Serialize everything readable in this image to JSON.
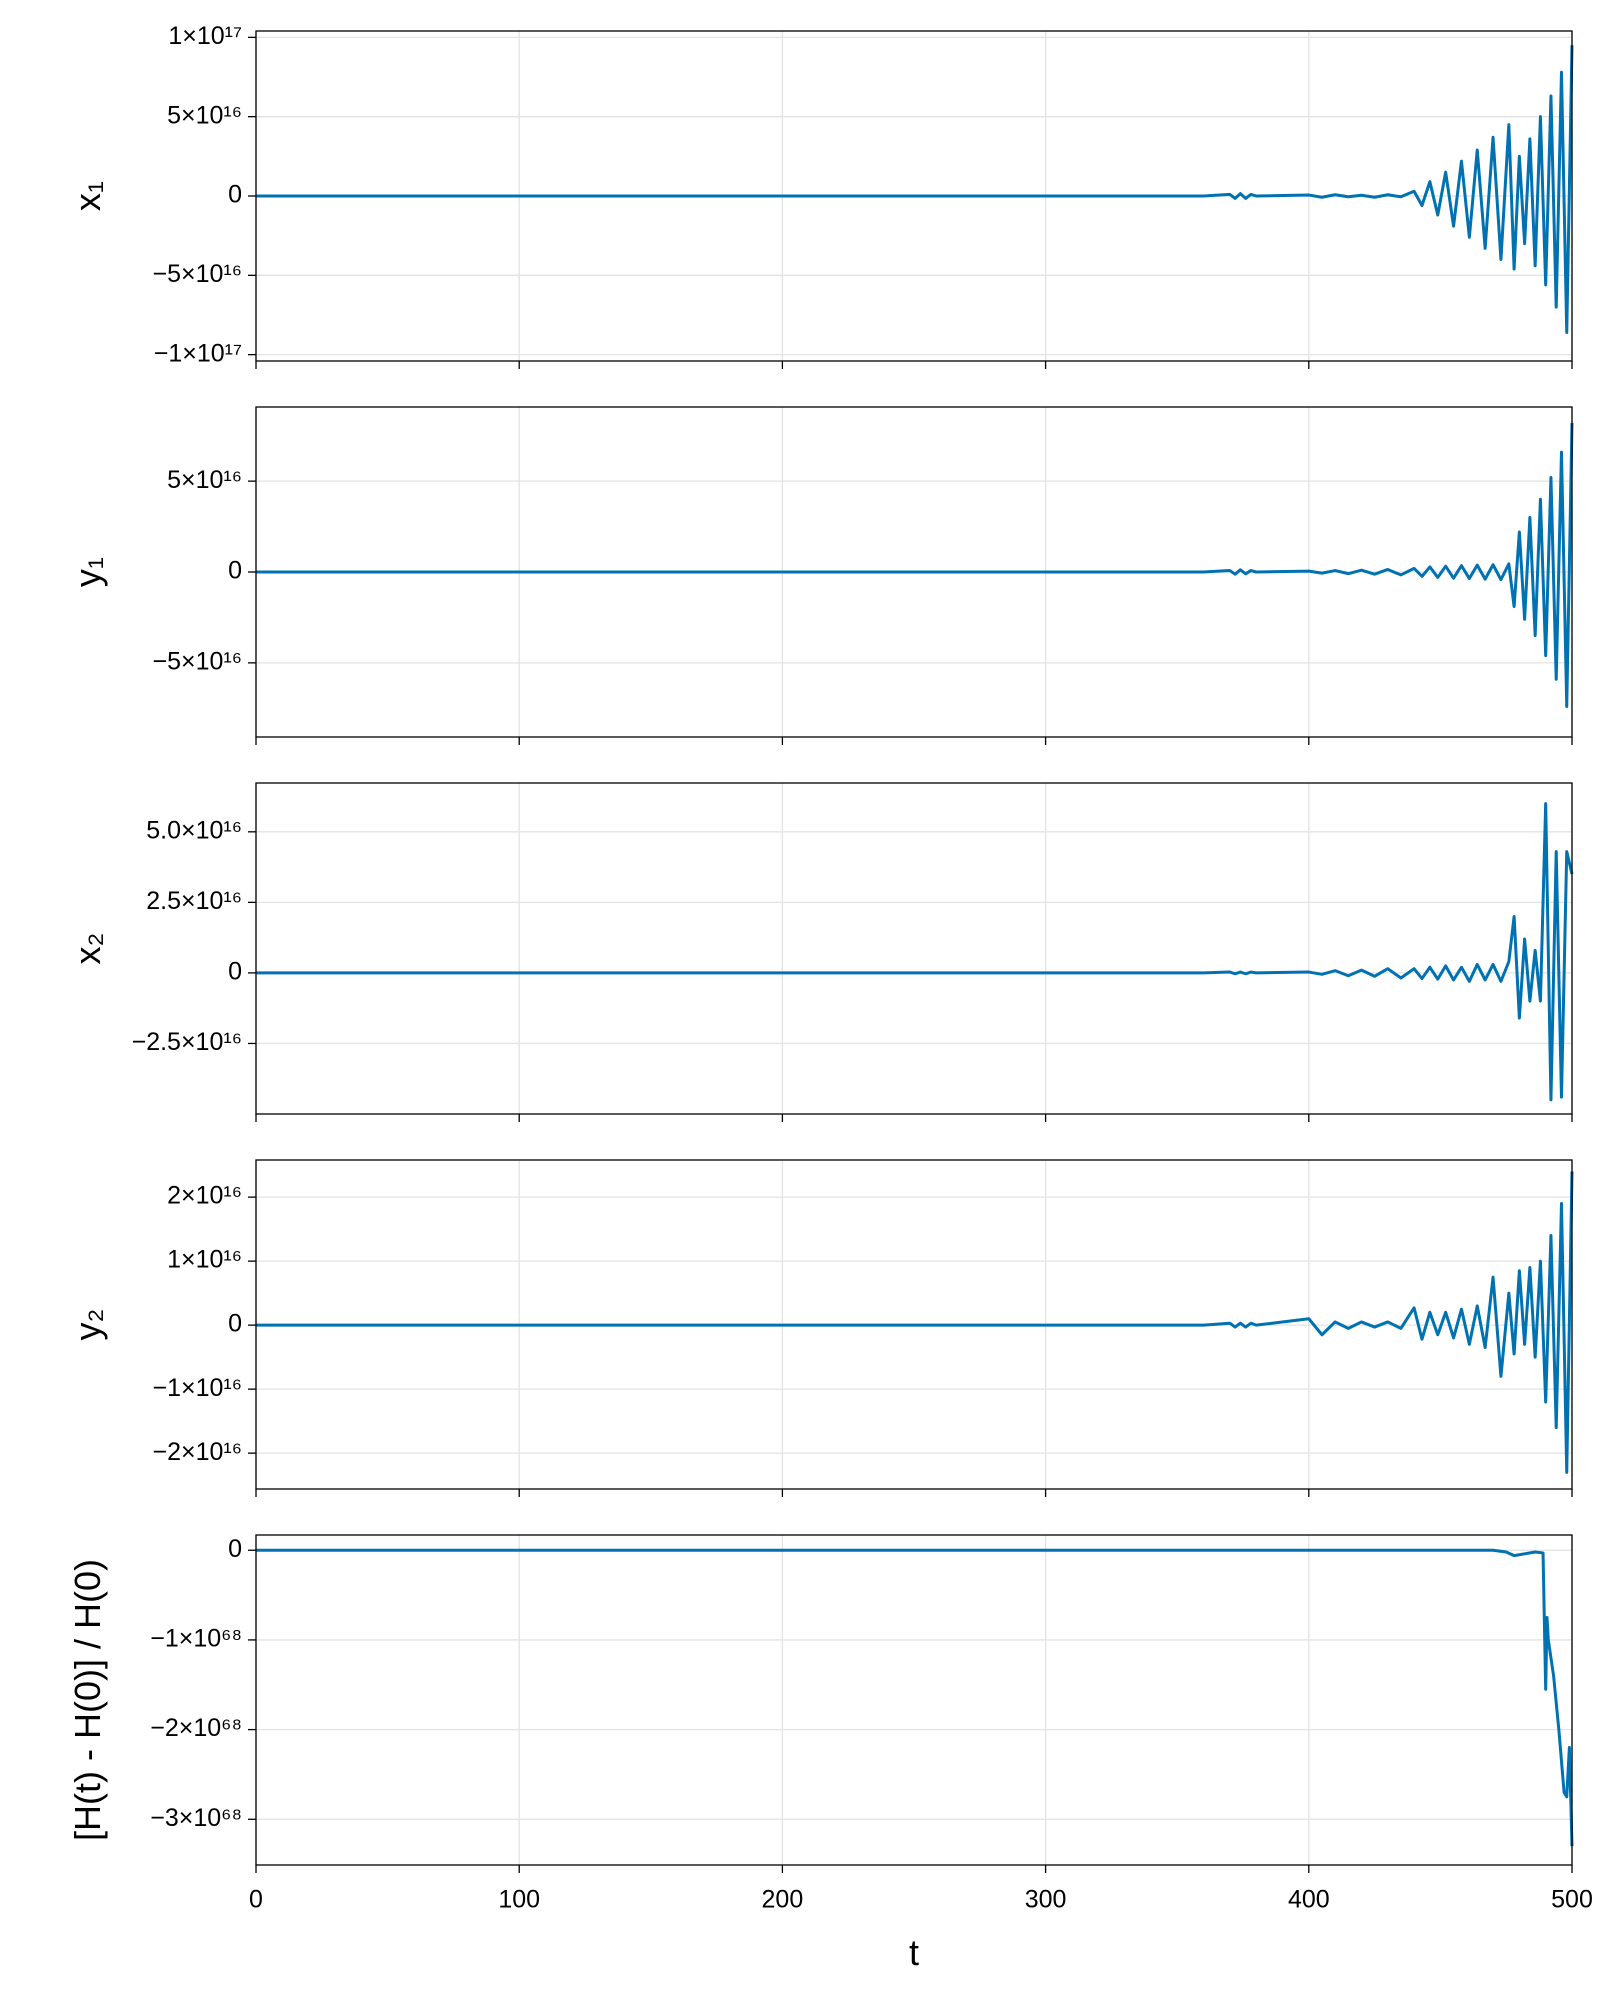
{
  "chart_data": [
    {
      "type": "line",
      "ylabel": "x₁",
      "xlim": [
        0,
        500
      ],
      "xticks": [
        0,
        100,
        200,
        300,
        400,
        500
      ],
      "grid": true,
      "ylim": [
        -1.04e+17,
        1.04e+17
      ],
      "yticks": [
        {
          "value": -1e+17,
          "label": "−1×10¹⁷"
        },
        {
          "value": -5e+16,
          "label": "−5×10¹⁶"
        },
        0,
        {
          "value": 5e+16,
          "label": "5×10¹⁶"
        },
        {
          "value": 1e+17,
          "label": "1×10¹⁷"
        }
      ],
      "x": [
        0,
        360,
        370,
        372,
        374,
        376,
        378,
        380,
        400,
        405,
        410,
        415,
        420,
        425,
        430,
        435,
        440,
        443,
        446,
        449,
        452,
        455,
        458,
        461,
        464,
        467,
        470,
        473,
        476,
        478,
        480,
        482,
        484,
        486,
        488,
        490,
        492,
        494,
        496,
        498,
        500
      ],
      "series": [
        {
          "color": "#0072b2",
          "values": [
            0,
            0,
            1000000000000000.0,
            -1500000000000000.0,
            1500000000000000.0,
            -1500000000000000.0,
            1000000000000000.0,
            0,
            600000000000000.0,
            -800000000000000.0,
            800000000000000.0,
            -500000000000000.0,
            500000000000000.0,
            -800000000000000.0,
            800000000000000.0,
            -500000000000000.0,
            3000000000000000.0,
            -6000000000000000.0,
            9000000000000000.0,
            -1.2e+16,
            1.5e+16,
            -1.9e+16,
            2.2e+16,
            -2.6e+16,
            2.9e+16,
            -3.3e+16,
            3.7e+16,
            -4e+16,
            4.5e+16,
            -4.6e+16,
            2.5e+16,
            -3e+16,
            3.6e+16,
            -4.4e+16,
            5e+16,
            -5.6e+16,
            6.3e+16,
            -7e+16,
            7.8e+16,
            -8.6e+16,
            9.5e+16
          ]
        }
      ]
    },
    {
      "type": "line",
      "ylabel": "y₁",
      "xlim": [
        0,
        500
      ],
      "xticks": [
        0,
        100,
        200,
        300,
        400,
        500
      ],
      "grid": true,
      "ylim": [
        -9.08e+16,
        9.08e+16
      ],
      "yticks": [
        {
          "value": -5e+16,
          "label": "−5×10¹⁶"
        },
        0,
        {
          "value": 5e+16,
          "label": "5×10¹⁶"
        }
      ],
      "x": [
        0,
        360,
        370,
        372,
        374,
        376,
        378,
        380,
        400,
        405,
        410,
        415,
        420,
        425,
        430,
        435,
        440,
        443,
        446,
        449,
        452,
        455,
        458,
        461,
        464,
        467,
        470,
        473,
        476,
        478,
        480,
        482,
        484,
        486,
        488,
        490,
        492,
        494,
        496,
        498,
        500
      ],
      "series": [
        {
          "color": "#0072b2",
          "values": [
            0,
            0,
            800000000000000.0,
            -1200000000000000.0,
            1200000000000000.0,
            -1000000000000000.0,
            800000000000000.0,
            0,
            500000000000000.0,
            -600000000000000.0,
            800000000000000.0,
            -900000000000000.0,
            1000000000000000.0,
            -1200000000000000.0,
            1400000000000000.0,
            -1600000000000000.0,
            2000000000000000.0,
            -2400000000000000.0,
            2800000000000000.0,
            -3000000000000000.0,
            3200000000000000.0,
            -3400000000000000.0,
            3500000000000000.0,
            -3600000000000000.0,
            3800000000000000.0,
            -3900000000000000.0,
            4000000000000000.0,
            -4200000000000000.0,
            4500000000000000.0,
            -1.9e+16,
            2.2e+16,
            -2.6e+16,
            3e+16,
            -3.5e+16,
            4e+16,
            -4.6e+16,
            5.2e+16,
            -5.9e+16,
            6.6e+16,
            -7.4e+16,
            8.2e+16
          ]
        }
      ]
    },
    {
      "type": "line",
      "ylabel": "x₂",
      "xlim": [
        0,
        500
      ],
      "xticks": [
        0,
        100,
        200,
        300,
        400,
        500
      ],
      "grid": true,
      "ylim": [
        -5e+16,
        6.73e+16
      ],
      "yticks": [
        {
          "value": -2.5e+16,
          "label": "−2.5×10¹⁶"
        },
        0,
        {
          "value": 2.5e+16,
          "label": "2.5×10¹⁶"
        },
        {
          "value": 5e+16,
          "label": "5.0×10¹⁶"
        }
      ],
      "x": [
        0,
        360,
        370,
        372,
        374,
        376,
        378,
        380,
        400,
        405,
        410,
        415,
        420,
        425,
        430,
        435,
        440,
        443,
        446,
        449,
        452,
        455,
        458,
        461,
        464,
        467,
        470,
        473,
        476,
        478,
        480,
        482,
        484,
        486,
        488,
        490,
        492,
        494,
        496,
        498,
        500
      ],
      "series": [
        {
          "color": "#0072b2",
          "values": [
            0,
            0,
            300000000000000.0,
            -300000000000000.0,
            300000000000000.0,
            -300000000000000.0,
            300000000000000.0,
            0,
            300000000000000.0,
            -500000000000000.0,
            800000000000000.0,
            -1000000000000000.0,
            1000000000000000.0,
            -1200000000000000.0,
            1500000000000000.0,
            -1800000000000000.0,
            1500000000000000.0,
            -2000000000000000.0,
            2000000000000000.0,
            -2200000000000000.0,
            2500000000000000.0,
            -2500000000000000.0,
            2000000000000000.0,
            -3000000000000000.0,
            3000000000000000.0,
            -2500000000000000.0,
            3000000000000000.0,
            -3000000000000000.0,
            4000000000000000.0,
            2e+16,
            -1.6e+16,
            1.2e+16,
            -1e+16,
            8000000000000000.0,
            -1e+16,
            6e+16,
            -4.5e+16,
            4.3e+16,
            -4.4e+16,
            4.3e+16,
            3.5e+16
          ]
        }
      ]
    },
    {
      "type": "line",
      "ylabel": "y₂",
      "xlim": [
        0,
        500
      ],
      "xticks": [
        0,
        100,
        200,
        300,
        400,
        500
      ],
      "grid": true,
      "ylim": [
        -2.56e+16,
        2.58e+16
      ],
      "yticks": [
        {
          "value": -2e+16,
          "label": "−2×10¹⁶"
        },
        {
          "value": -1e+16,
          "label": "−1×10¹⁶"
        },
        0,
        {
          "value": 1e+16,
          "label": "1×10¹⁶"
        },
        {
          "value": 2e+16,
          "label": "2×10¹⁶"
        }
      ],
      "x": [
        0,
        360,
        370,
        372,
        374,
        376,
        378,
        380,
        400,
        405,
        410,
        415,
        420,
        425,
        430,
        435,
        440,
        443,
        446,
        449,
        452,
        455,
        458,
        461,
        464,
        467,
        470,
        473,
        476,
        478,
        480,
        482,
        484,
        486,
        488,
        490,
        492,
        494,
        496,
        498,
        500
      ],
      "series": [
        {
          "color": "#0072b2",
          "values": [
            0,
            0,
            300000000000000.0,
            -300000000000000.0,
            300000000000000.0,
            -300000000000000.0,
            300000000000000.0,
            0,
            1000000000000000.0,
            -1500000000000000.0,
            500000000000000.0,
            -500000000000000.0,
            500000000000000.0,
            -300000000000000.0,
            500000000000000.0,
            -500000000000000.0,
            2700000000000000.0,
            -2200000000000000.0,
            2000000000000000.0,
            -1500000000000000.0,
            2000000000000000.0,
            -2000000000000000.0,
            2500000000000000.0,
            -3000000000000000.0,
            3000000000000000.0,
            -3500000000000000.0,
            7500000000000000.0,
            -8000000000000000.0,
            5000000000000000.0,
            -4500000000000000.0,
            8500000000000000.0,
            -3000000000000000.0,
            9000000000000000.0,
            -5000000000000000.0,
            1e+16,
            -1.2e+16,
            1.4e+16,
            -1.6e+16,
            1.9e+16,
            -2.3e+16,
            2.4e+16
          ]
        }
      ]
    },
    {
      "type": "line",
      "ylabel": "[H(t) - H(0)] / H(0)",
      "xlabel": "t",
      "xlim": [
        0,
        500
      ],
      "xticks": [
        0,
        100,
        200,
        300,
        400,
        500
      ],
      "grid": true,
      "ylim": [
        -3.51e+68,
        1.7e+67
      ],
      "yticks": [
        {
          "value": -3e+68,
          "label": "−3×10⁶⁸"
        },
        {
          "value": -2e+68,
          "label": "−2×10⁶⁸"
        },
        {
          "value": -1e+68,
          "label": "−1×10⁶⁸"
        },
        0
      ],
      "x": [
        0,
        470,
        475,
        478,
        482,
        486,
        489,
        490,
        490.5,
        491,
        493,
        495,
        497,
        498,
        499,
        500
      ],
      "series": [
        {
          "color": "#0072b2",
          "values": [
            0,
            0,
            -2e+66,
            -6e+66,
            -4e+66,
            -2e+66,
            -3e+66,
            -1.55e+68,
            -7.5e+67,
            -1e+68,
            -1.4e+68,
            -2e+68,
            -2.7e+68,
            -2.75e+68,
            -2.2e+68,
            -3.3e+68
          ]
        }
      ]
    }
  ]
}
